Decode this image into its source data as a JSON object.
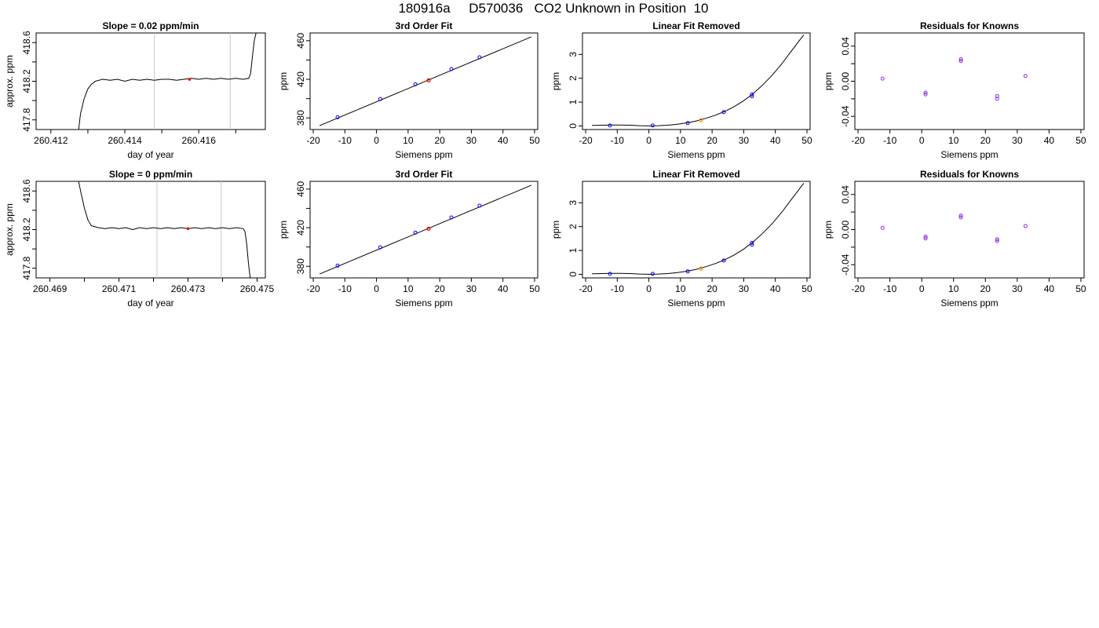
{
  "page": {
    "title": "180916a     D570036   CO2 Unknown in Position  10"
  },
  "colors": {
    "known": "#0000ff",
    "unknown": "#ff0000",
    "unknown_lfr": "#ff8c00",
    "residual": "#8a2be2",
    "line": "#000000",
    "window": "#c8c8c8"
  },
  "chart_data": [
    {
      "id": "r1-trace",
      "type": "line",
      "title": "Slope =  0.02  ppm/min",
      "xlabel": "day of year",
      "ylabel": "approx. ppm",
      "xlim": [
        260.4116,
        260.4178
      ],
      "ylim": [
        417.7,
        418.7
      ],
      "xticks": [
        260.412,
        260.413,
        260.414,
        260.415,
        260.416,
        260.417
      ],
      "xtick_labels": [
        "260.412",
        "",
        "260.414",
        "",
        "260.416",
        ""
      ],
      "yticks": [
        417.8,
        418.0,
        418.2,
        418.4,
        418.6
      ],
      "ytick_labels": [
        "417.8",
        "",
        "418.2",
        "",
        "418.6"
      ],
      "window": [
        260.4148,
        260.41685
      ],
      "marker": {
        "x": 260.41575,
        "y": 418.22
      },
      "series": [
        {
          "x": [
            260.41275,
            260.4128,
            260.4129,
            260.413,
            260.4131,
            260.4132,
            260.4134,
            260.4136,
            260.4138,
            260.414,
            260.4142,
            260.4144,
            260.4146,
            260.4148,
            260.415,
            260.4152,
            260.4154,
            260.4156,
            260.4158,
            260.416,
            260.4162,
            260.4164,
            260.4166,
            260.4168,
            260.417,
            260.4172,
            260.41735,
            260.4174,
            260.41745,
            260.4175,
            260.41755
          ],
          "y": [
            417.7,
            417.86,
            418.02,
            418.12,
            418.17,
            418.2,
            418.22,
            418.21,
            418.22,
            418.2,
            418.22,
            418.21,
            418.22,
            418.21,
            418.22,
            418.22,
            418.21,
            418.22,
            418.23,
            418.22,
            418.23,
            418.22,
            418.23,
            418.22,
            418.23,
            418.22,
            418.23,
            418.28,
            418.45,
            418.62,
            418.7
          ]
        }
      ]
    },
    {
      "id": "r1-fit",
      "type": "scatter",
      "title": "3rd Order Fit",
      "xlabel": "Siemens ppm",
      "ylabel": "ppm",
      "xlim": [
        -21,
        51
      ],
      "ylim": [
        368,
        468
      ],
      "xticks": [
        -20,
        -10,
        0,
        10,
        20,
        30,
        40,
        50
      ],
      "xtick_labels": [
        "-20",
        "-10",
        "0",
        "10",
        "20",
        "30",
        "40",
        "50"
      ],
      "yticks": [
        380,
        400,
        420,
        440,
        460
      ],
      "ytick_labels": [
        "380",
        "",
        "420",
        "",
        "460"
      ],
      "line": {
        "x": [
          -18,
          49
        ],
        "y": [
          372,
          464
        ]
      },
      "known": {
        "x": [
          -12.3,
          1.2,
          12.3,
          23.7,
          32.6
        ],
        "y": [
          380.7,
          399.6,
          414.9,
          430.6,
          442.8
        ]
      },
      "unknown": {
        "x": [
          16.5
        ],
        "y": [
          418.9
        ]
      }
    },
    {
      "id": "r1-lfr",
      "type": "scatter",
      "title": "Linear Fit Removed",
      "xlabel": "Siemens ppm",
      "ylabel": "ppm",
      "xlim": [
        -21,
        51
      ],
      "ylim": [
        -0.15,
        3.9
      ],
      "xticks": [
        -20,
        -10,
        0,
        10,
        20,
        30,
        40,
        50
      ],
      "xtick_labels": [
        "-20",
        "-10",
        "0",
        "10",
        "20",
        "30",
        "40",
        "50"
      ],
      "yticks": [
        0,
        1,
        2,
        3
      ],
      "ytick_labels": [
        "0",
        "1",
        "2",
        "3"
      ],
      "curve": {
        "x": [
          -18,
          -15,
          -12,
          -9,
          -6,
          -3,
          0,
          3,
          6,
          9,
          12,
          15,
          18,
          21,
          24,
          27,
          30,
          33,
          36,
          39,
          42,
          45,
          48,
          49
        ],
        "y": [
          0.02,
          0.03,
          0.04,
          0.04,
          0.03,
          0.01,
          0.0,
          0.01,
          0.03,
          0.07,
          0.13,
          0.21,
          0.32,
          0.45,
          0.61,
          0.81,
          1.06,
          1.36,
          1.72,
          2.13,
          2.6,
          3.13,
          3.65,
          3.82
        ]
      },
      "known": {
        "x": [
          -12.3,
          1.2,
          12.3,
          23.7,
          32.6,
          32.6
        ],
        "y": [
          0.02,
          0.02,
          0.12,
          0.58,
          1.24,
          1.32
        ]
      },
      "unknown": {
        "x": [
          16.5
        ],
        "y": [
          0.24
        ]
      }
    },
    {
      "id": "r1-res",
      "type": "scatter",
      "title": "Residuals for Knowns",
      "xlabel": "Siemens ppm",
      "ylabel": "ppm",
      "xlim": [
        -21,
        51
      ],
      "ylim": [
        -0.055,
        0.055
      ],
      "xticks": [
        -20,
        -10,
        0,
        10,
        20,
        30,
        40,
        50
      ],
      "xtick_labels": [
        "-20",
        "-10",
        "0",
        "10",
        "20",
        "30",
        "40",
        "50"
      ],
      "yticks": [
        -0.04,
        -0.02,
        0.0,
        0.02,
        0.04
      ],
      "ytick_labels": [
        "-0.04",
        "",
        "0.00",
        "",
        "0.04"
      ],
      "known": {
        "x": [
          -12.3,
          1.2,
          1.2,
          12.3,
          12.3,
          23.7,
          23.7,
          32.6
        ],
        "y": [
          0.003,
          -0.013,
          -0.015,
          0.025,
          0.023,
          -0.017,
          -0.02,
          0.006
        ]
      }
    },
    {
      "id": "r2-trace",
      "type": "line",
      "title": "Slope =  0  ppm/min",
      "xlabel": "day of year",
      "ylabel": "approx. ppm",
      "xlim": [
        260.4686,
        260.47524
      ],
      "ylim": [
        417.7,
        418.7
      ],
      "xticks": [
        260.469,
        260.47,
        260.471,
        260.472,
        260.473,
        260.474,
        260.475
      ],
      "xtick_labels": [
        "260.469",
        "",
        "260.471",
        "",
        "260.473",
        "",
        "260.475"
      ],
      "yticks": [
        417.8,
        418.0,
        418.2,
        418.4,
        418.6
      ],
      "ytick_labels": [
        "417.8",
        "",
        "418.2",
        "",
        "418.6"
      ],
      "window": [
        260.4721,
        260.47396
      ],
      "marker": {
        "x": 260.473,
        "y": 418.21
      },
      "series": [
        {
          "x": [
            260.46983,
            260.4699,
            260.47,
            260.4701,
            260.4702,
            260.4704,
            260.4706,
            260.4708,
            260.471,
            260.4712,
            260.4714,
            260.4716,
            260.4718,
            260.472,
            260.4722,
            260.4724,
            260.4726,
            260.4728,
            260.473,
            260.4732,
            260.4734,
            260.4736,
            260.4738,
            260.474,
            260.4742,
            260.4744,
            260.4746,
            260.47465,
            260.4747,
            260.47475,
            260.4748
          ],
          "y": [
            418.7,
            418.58,
            418.42,
            418.3,
            418.24,
            418.22,
            418.21,
            418.22,
            418.21,
            418.22,
            418.2,
            418.22,
            418.21,
            418.22,
            418.21,
            418.22,
            418.21,
            418.22,
            418.21,
            418.22,
            418.21,
            418.22,
            418.21,
            418.22,
            418.21,
            418.22,
            418.21,
            418.18,
            418.05,
            417.85,
            417.7
          ]
        }
      ]
    },
    {
      "id": "r2-fit",
      "type": "scatter",
      "title": "3rd Order Fit",
      "xlabel": "Siemens ppm",
      "ylabel": "ppm",
      "xlim": [
        -21,
        51
      ],
      "ylim": [
        368,
        468
      ],
      "xticks": [
        -20,
        -10,
        0,
        10,
        20,
        30,
        40,
        50
      ],
      "xtick_labels": [
        "-20",
        "-10",
        "0",
        "10",
        "20",
        "30",
        "40",
        "50"
      ],
      "yticks": [
        380,
        400,
        420,
        440,
        460
      ],
      "ytick_labels": [
        "380",
        "",
        "420",
        "",
        "460"
      ],
      "line": {
        "x": [
          -18,
          49
        ],
        "y": [
          372,
          464
        ]
      },
      "known": {
        "x": [
          -12.3,
          1.2,
          12.3,
          23.7,
          32.6
        ],
        "y": [
          380.7,
          399.6,
          414.9,
          430.6,
          442.8
        ]
      },
      "unknown": {
        "x": [
          16.5
        ],
        "y": [
          418.9
        ]
      }
    },
    {
      "id": "r2-lfr",
      "type": "scatter",
      "title": "Linear Fit Removed",
      "xlabel": "Siemens ppm",
      "ylabel": "ppm",
      "xlim": [
        -21,
        51
      ],
      "ylim": [
        -0.15,
        3.9
      ],
      "xticks": [
        -20,
        -10,
        0,
        10,
        20,
        30,
        40,
        50
      ],
      "xtick_labels": [
        "-20",
        "-10",
        "0",
        "10",
        "20",
        "30",
        "40",
        "50"
      ],
      "yticks": [
        0,
        1,
        2,
        3
      ],
      "ytick_labels": [
        "0",
        "1",
        "2",
        "3"
      ],
      "curve": {
        "x": [
          -18,
          -15,
          -12,
          -9,
          -6,
          -3,
          0,
          3,
          6,
          9,
          12,
          15,
          18,
          21,
          24,
          27,
          30,
          33,
          36,
          39,
          42,
          45,
          48,
          49
        ],
        "y": [
          0.02,
          0.03,
          0.04,
          0.04,
          0.03,
          0.01,
          0.0,
          0.01,
          0.03,
          0.07,
          0.13,
          0.21,
          0.32,
          0.45,
          0.61,
          0.81,
          1.06,
          1.36,
          1.72,
          2.13,
          2.6,
          3.13,
          3.65,
          3.82
        ]
      },
      "known": {
        "x": [
          -12.3,
          1.2,
          12.3,
          23.7,
          32.6,
          32.6
        ],
        "y": [
          0.02,
          0.02,
          0.12,
          0.58,
          1.24,
          1.32
        ]
      },
      "unknown": {
        "x": [
          16.5
        ],
        "y": [
          0.24
        ]
      }
    },
    {
      "id": "r2-res",
      "type": "scatter",
      "title": "Residuals for Knowns",
      "xlabel": "Siemens ppm",
      "ylabel": "ppm",
      "xlim": [
        -21,
        51
      ],
      "ylim": [
        -0.055,
        0.055
      ],
      "xticks": [
        -20,
        -10,
        0,
        10,
        20,
        30,
        40,
        50
      ],
      "xtick_labels": [
        "-20",
        "-10",
        "0",
        "10",
        "20",
        "30",
        "40",
        "50"
      ],
      "yticks": [
        -0.04,
        -0.02,
        0.0,
        0.02,
        0.04
      ],
      "ytick_labels": [
        "-0.04",
        "",
        "0.00",
        "",
        "0.04"
      ],
      "known": {
        "x": [
          -12.3,
          1.2,
          1.2,
          12.3,
          12.3,
          23.7,
          23.7,
          32.6
        ],
        "y": [
          0.002,
          -0.008,
          -0.01,
          0.016,
          0.014,
          -0.011,
          -0.013,
          0.004
        ]
      }
    }
  ]
}
